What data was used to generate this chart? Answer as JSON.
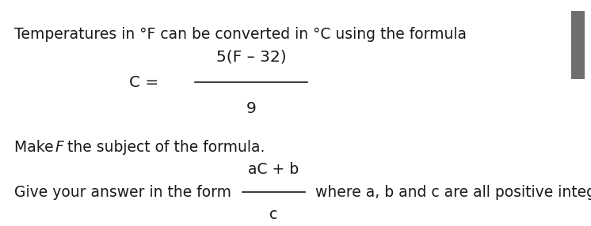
{
  "bg_color": "#ffffff",
  "text_color": "#1a1a1a",
  "line1": "Temperatures in °F can be converted in °C using the formula",
  "formula_num": "5(F – 32)",
  "formula_den": "9",
  "line3_a": "Make ",
  "line3_b": "F",
  "line3_c": " the subject of the formula.",
  "line4_pre": "Give your answer in the form ",
  "frac_num": "aC + b",
  "frac_den": "c",
  "line4_post": " where a, b and c are all positive integers.",
  "font_size": 13.5,
  "scrollbar_color": "#6e6e6e",
  "scrollbar_bg": "#e8e8e8"
}
